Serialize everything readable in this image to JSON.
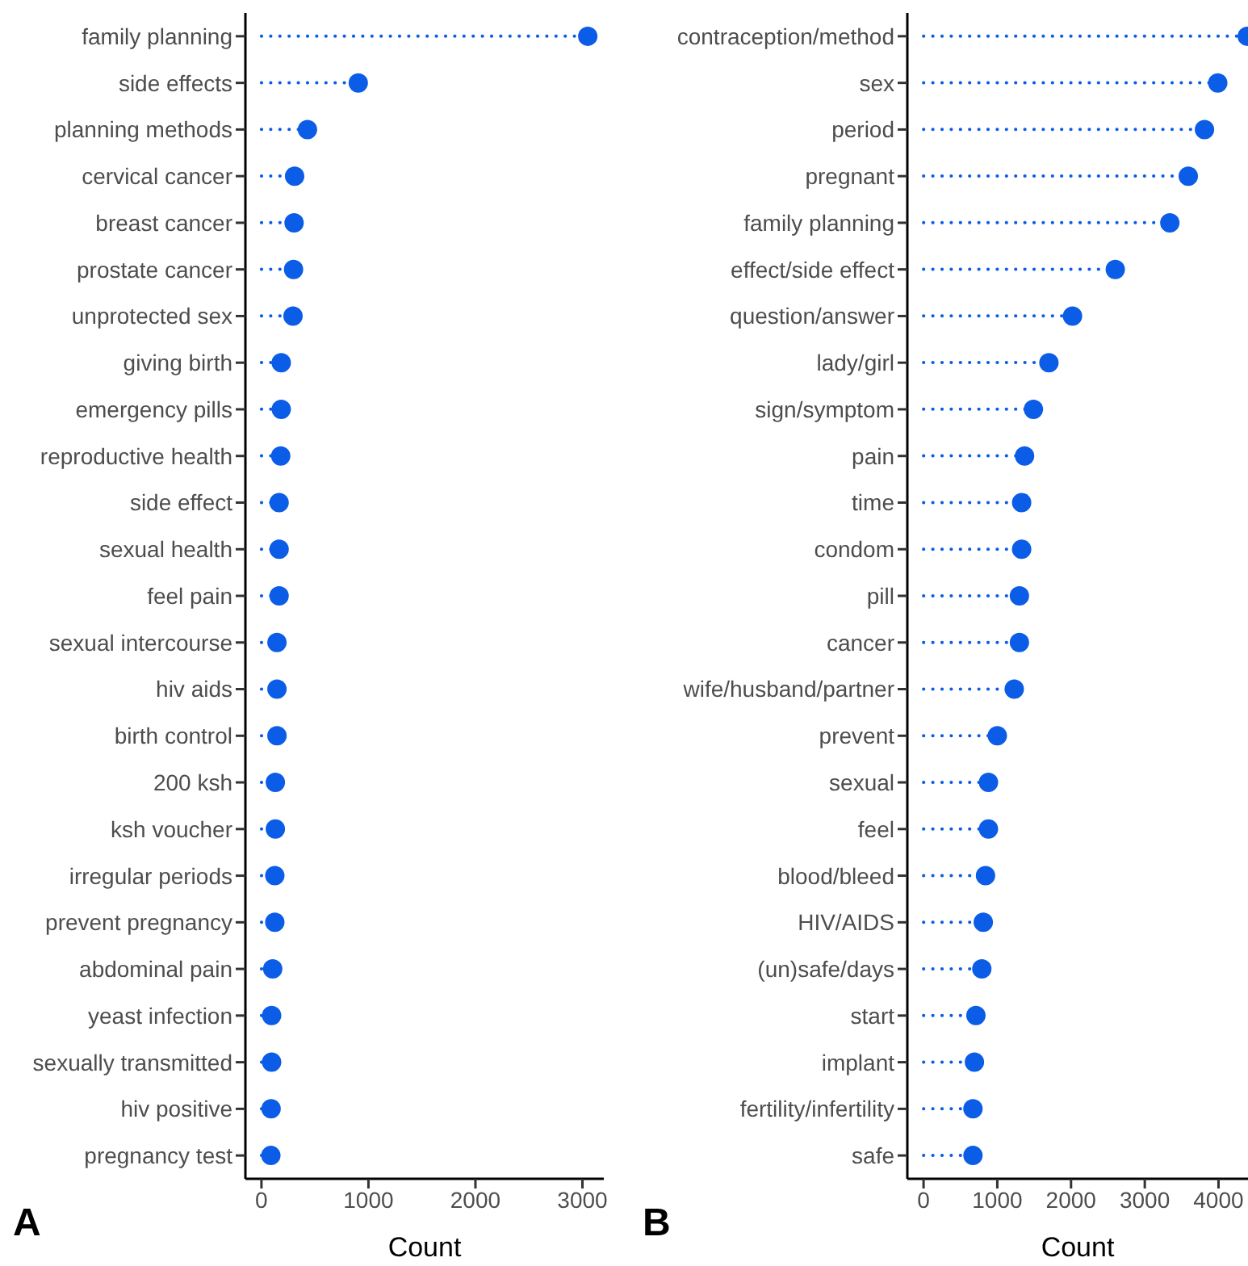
{
  "chart_data": [
    {
      "type": "lollipop",
      "categories": [
        "family planning",
        "side effects",
        "planning methods",
        "cervical cancer",
        "breast cancer",
        "prostate cancer",
        "unprotected sex",
        "giving birth",
        "emergency pills",
        "reproductive health",
        "side effect",
        "sexual health",
        "feel pain",
        "sexual intercourse",
        "hiv aids",
        "birth control",
        "200 ksh",
        "ksh voucher",
        "irregular periods",
        "prevent pregnancy",
        "abdominal pain",
        "yeast infection",
        "sexually transmitted",
        "hiv positive",
        "pregnancy test"
      ],
      "values": [
        3050,
        905,
        430,
        310,
        305,
        300,
        295,
        185,
        185,
        180,
        165,
        165,
        165,
        145,
        145,
        145,
        130,
        130,
        125,
        125,
        105,
        95,
        95,
        90,
        88
      ],
      "color": "#0b5ce6",
      "orientation": "horizontal",
      "xlabel": "Count",
      "xlim": [
        -150,
        3200
      ],
      "xticks": [
        0,
        1000,
        2000,
        3000
      ],
      "line_style": "dotted",
      "marker": "circle",
      "grid": false,
      "annotations": [
        "A"
      ]
    },
    {
      "type": "lollipop",
      "categories": [
        "contraception/method",
        "sex",
        "period",
        "pregnant",
        "family planning",
        "effect/side effect",
        "question/answer",
        "lady/girl",
        "sign/symptom",
        "pain",
        "time",
        "condom",
        "pill",
        "cancer",
        "wife/husband/partner",
        "prevent",
        "sexual",
        "feel",
        "blood/bleed",
        "HIV/AIDS",
        "(un)safe/days",
        "start",
        "implant",
        "fertility/infertility",
        "safe"
      ],
      "values": [
        4390,
        3990,
        3810,
        3590,
        3340,
        2600,
        2020,
        1700,
        1490,
        1370,
        1330,
        1330,
        1300,
        1300,
        1230,
        1000,
        880,
        880,
        840,
        810,
        790,
        710,
        690,
        670,
        670
      ],
      "color": "#0b5ce6",
      "orientation": "horizontal",
      "xlabel": "Count",
      "xlim": [
        -220,
        4400
      ],
      "xticks": [
        0,
        1000,
        2000,
        3000,
        4000
      ],
      "line_style": "dotted",
      "marker": "circle",
      "grid": false,
      "annotations": [
        "B"
      ]
    }
  ]
}
